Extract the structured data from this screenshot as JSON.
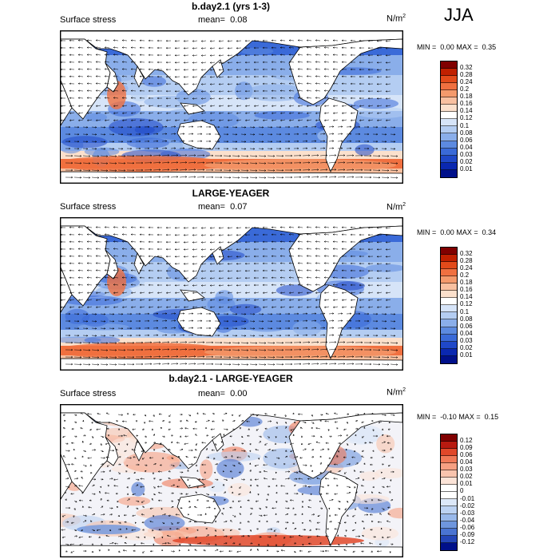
{
  "season": "JJA",
  "panels": [
    {
      "title": "b.day2.1 (yrs 1-3)",
      "variable": "Surface stress",
      "mean_label": "mean=",
      "mean_value": "0.08",
      "units": "N/m",
      "units_exp": "2",
      "min_label": "MIN =",
      "min_value": "0.00",
      "max_label": "MAX =",
      "max_value": "0.35",
      "kind": "abs",
      "colorbar_labels": [
        "0.32",
        "0.28",
        "0.24",
        "0.2",
        "0.18",
        "0.16",
        "0.14",
        "0.12",
        "0.1",
        "0.08",
        "0.06",
        "0.04",
        "0.03",
        "0.02",
        "0.01"
      ]
    },
    {
      "title": "LARGE-YEAGER",
      "variable": "Surface stress",
      "mean_label": "mean=",
      "mean_value": "0.07",
      "units": "N/m",
      "units_exp": "2",
      "min_label": "MIN =",
      "min_value": "0.00",
      "max_label": "MAX =",
      "max_value": "0.34",
      "kind": "abs",
      "colorbar_labels": [
        "0.32",
        "0.28",
        "0.24",
        "0.2",
        "0.18",
        "0.16",
        "0.14",
        "0.12",
        "0.1",
        "0.08",
        "0.06",
        "0.04",
        "0.03",
        "0.02",
        "0.01"
      ]
    },
    {
      "title": "b.day2.1 - LARGE-YEAGER",
      "variable": "Surface stress",
      "mean_label": "mean=",
      "mean_value": "0.00",
      "units": "N/m",
      "units_exp": "2",
      "min_label": "MIN =",
      "min_value": "-0.10",
      "max_label": "MAX =",
      "max_value": "0.15",
      "kind": "diff",
      "colorbar_labels": [
        "0.12",
        "0.09",
        "0.06",
        "0.04",
        "0.03",
        "0.02",
        "0.01",
        "0",
        "-0.01",
        "-0.02",
        "-0.03",
        "-0.04",
        "-0.06",
        "-0.09",
        "-0.12"
      ]
    }
  ],
  "colors": {
    "abs_scale": [
      "#800000",
      "#c02000",
      "#e24a1a",
      "#f07040",
      "#f49a6c",
      "#f8c0a0",
      "#fbe0cc",
      "#ffffff",
      "#d6e4f8",
      "#b4cdf2",
      "#8aaeea",
      "#5c8ae0",
      "#3a6ad8",
      "#1f48c8",
      "#0a28b0",
      "#00108a"
    ],
    "diff_scale": [
      "#800000",
      "#b81a10",
      "#e0482a",
      "#f07a58",
      "#f6a082",
      "#f9c4ae",
      "#fce4d8",
      "#ffffff",
      "#ffffff",
      "#dce8f8",
      "#bcd2f2",
      "#98b8ea",
      "#6e96de",
      "#4a74d2",
      "#2446b8",
      "#00108a"
    ]
  }
}
